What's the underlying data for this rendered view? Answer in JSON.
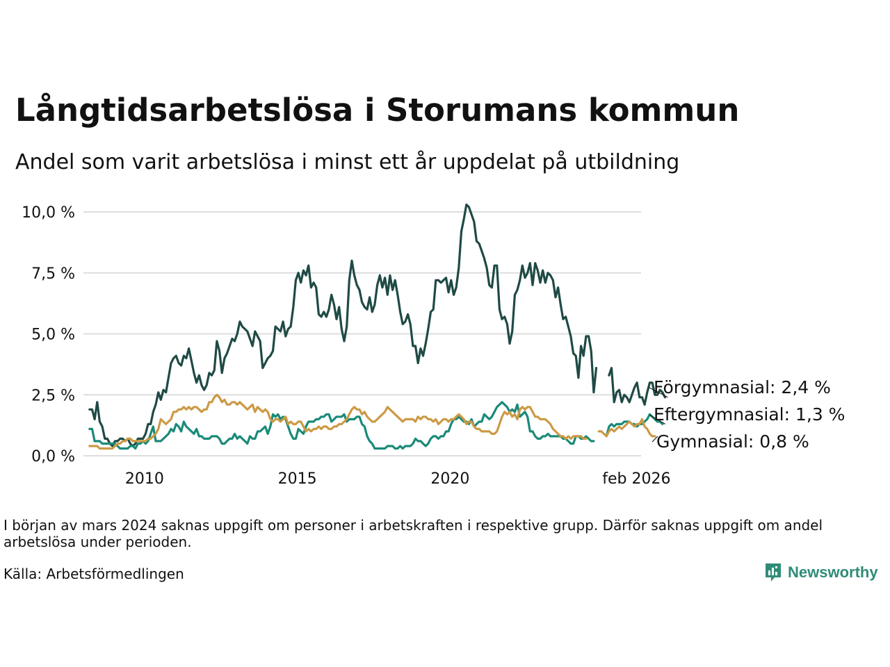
{
  "chart_data": {
    "type": "line",
    "title": "Långtidsarbetslösa i Storumans kommun",
    "subtitle": "Andel som varit arbetslösa i minst ett år uppdelat på utbildning",
    "xlabel": "",
    "ylabel": "",
    "x_start": 2008.2,
    "x_step": 0.0833333,
    "xlim": [
      2008.0,
      2026.25
    ],
    "ylim": [
      0,
      10.3
    ],
    "y_ticks": [
      {
        "value": 0,
        "label": "0,0 %"
      },
      {
        "value": 2.5,
        "label": "2,5 %"
      },
      {
        "value": 5,
        "label": "5,0 %"
      },
      {
        "value": 7.5,
        "label": "7,5 %"
      },
      {
        "value": 10,
        "label": "10,0 %"
      }
    ],
    "x_ticks": [
      {
        "value": 2010,
        "label": "2010"
      },
      {
        "value": 2015,
        "label": "2015"
      },
      {
        "value": 2020,
        "label": "2020"
      },
      {
        "value": 2026.1,
        "label": "feb 2026"
      }
    ],
    "grid": true,
    "series": [
      {
        "name": "Förgymnasial",
        "label": "Förgymnasial: 2,4 %",
        "color": "#1f4a45",
        "values": [
          1.9,
          1.9,
          1.5,
          2.2,
          1.4,
          1.2,
          0.7,
          0.7,
          0.5,
          0.4,
          0.6,
          0.6,
          0.7,
          0.7,
          0.6,
          0.7,
          0.5,
          0.4,
          0.5,
          0.7,
          0.7,
          0.7,
          0.9,
          1.3,
          1.3,
          1.8,
          2.1,
          2.6,
          2.3,
          2.7,
          2.6,
          3.2,
          3.8,
          4.0,
          4.1,
          3.8,
          3.7,
          4.1,
          4.0,
          4.4,
          3.9,
          3.4,
          3.0,
          3.3,
          2.9,
          2.7,
          2.9,
          3.4,
          3.3,
          3.5,
          4.7,
          4.3,
          3.4,
          4.0,
          4.2,
          4.5,
          4.8,
          4.7,
          5.0,
          5.5,
          5.3,
          5.2,
          5.1,
          4.8,
          4.5,
          5.1,
          4.9,
          4.7,
          3.6,
          3.8,
          4.0,
          4.1,
          4.3,
          5.3,
          5.2,
          5.1,
          5.5,
          4.9,
          5.2,
          5.3,
          6.1,
          7.2,
          7.5,
          7.1,
          7.6,
          7.4,
          7.8,
          6.9,
          7.1,
          6.9,
          5.8,
          5.7,
          5.9,
          5.7,
          6.0,
          6.6,
          6.2,
          5.6,
          6.1,
          5.2,
          4.7,
          5.3,
          7.2,
          8.0,
          7.4,
          7.0,
          6.8,
          6.3,
          6.1,
          6.0,
          6.5,
          5.9,
          6.2,
          7.0,
          7.4,
          6.9,
          7.3,
          6.6,
          7.4,
          6.8,
          7.2,
          6.6,
          5.9,
          5.4,
          5.5,
          5.8,
          5.4,
          4.5,
          4.5,
          3.8,
          4.4,
          4.1,
          4.6,
          5.2,
          5.9,
          6.0,
          7.2,
          7.2,
          7.1,
          7.2,
          7.3,
          6.7,
          7.2,
          6.6,
          6.9,
          7.7,
          9.2,
          9.7,
          10.3,
          10.2,
          9.9,
          9.6,
          8.8,
          8.7,
          8.4,
          8.1,
          7.7,
          7.0,
          6.9,
          7.8,
          7.8,
          6.0,
          5.6,
          5.7,
          5.4,
          4.6,
          5.1,
          6.6,
          6.8,
          7.2,
          7.8,
          7.3,
          7.5,
          7.9,
          7.0,
          7.9,
          7.6,
          7.1,
          7.6,
          7.1,
          7.5,
          7.4,
          7.2,
          6.5,
          6.9,
          6.2,
          5.6,
          5.7,
          5.3,
          4.9,
          4.2,
          4.1,
          3.2,
          4.5,
          4.1,
          4.9,
          4.9,
          4.3,
          2.6,
          3.6,
          null,
          null,
          null,
          null,
          3.3,
          3.6,
          2.2,
          2.6,
          2.7,
          2.2,
          2.5,
          2.4,
          2.2,
          2.5,
          2.8,
          3.0,
          2.4,
          2.4,
          2.1,
          2.6,
          3.0,
          3.0,
          2.5,
          2.5,
          2.7,
          2.6,
          2.4
        ],
        "end_value": 2.4
      },
      {
        "name": "Eftergymnasial",
        "label": "Eftergymnasial: 1,3 %",
        "color": "#1a8a78",
        "values": [
          1.1,
          1.1,
          0.6,
          0.6,
          0.6,
          0.5,
          0.5,
          0.5,
          0.5,
          0.5,
          0.5,
          0.4,
          0.3,
          0.3,
          0.3,
          0.3,
          0.4,
          0.4,
          0.3,
          0.5,
          0.5,
          0.6,
          0.5,
          0.6,
          0.9,
          1.2,
          0.6,
          0.6,
          0.6,
          0.7,
          0.8,
          0.9,
          1.1,
          1.0,
          1.3,
          1.2,
          1.0,
          1.4,
          1.2,
          1.1,
          1.0,
          0.9,
          1.1,
          0.8,
          0.8,
          0.7,
          0.7,
          0.7,
          0.8,
          0.8,
          0.8,
          0.7,
          0.5,
          0.5,
          0.6,
          0.7,
          0.7,
          0.9,
          0.7,
          0.8,
          0.7,
          0.6,
          0.5,
          0.8,
          0.7,
          0.7,
          1.0,
          1.0,
          1.1,
          1.2,
          0.9,
          1.2,
          1.7,
          1.6,
          1.7,
          1.5,
          1.6,
          1.5,
          1.2,
          0.9,
          0.7,
          0.7,
          1.1,
          1.0,
          0.9,
          1.2,
          1.4,
          1.4,
          1.4,
          1.5,
          1.5,
          1.6,
          1.6,
          1.7,
          1.7,
          1.4,
          1.5,
          1.6,
          1.6,
          1.6,
          1.7,
          1.4,
          1.5,
          1.5,
          1.5,
          1.6,
          1.6,
          1.3,
          1.2,
          0.8,
          0.6,
          0.5,
          0.3,
          0.3,
          0.3,
          0.3,
          0.3,
          0.4,
          0.4,
          0.4,
          0.3,
          0.3,
          0.4,
          0.3,
          0.4,
          0.4,
          0.4,
          0.5,
          0.7,
          0.6,
          0.6,
          0.5,
          0.4,
          0.5,
          0.7,
          0.8,
          0.8,
          0.7,
          0.8,
          0.8,
          1.0,
          1.0,
          1.3,
          1.5,
          1.5,
          1.6,
          1.5,
          1.4,
          1.4,
          1.3,
          1.5,
          1.2,
          1.3,
          1.4,
          1.4,
          1.7,
          1.6,
          1.5,
          1.6,
          1.8,
          2.0,
          2.1,
          2.2,
          2.1,
          2.0,
          1.8,
          1.9,
          1.8,
          2.1,
          1.6,
          1.7,
          1.8,
          1.6,
          1.0,
          1.0,
          0.8,
          0.7,
          0.7,
          0.8,
          0.8,
          0.9,
          0.8,
          0.8,
          0.8,
          0.8,
          0.8,
          0.7,
          0.7,
          0.6,
          0.5,
          0.5,
          0.8,
          0.8,
          0.7,
          0.7,
          0.8,
          0.7,
          0.6,
          0.6,
          null,
          null,
          null,
          null,
          0.8,
          1.2,
          1.3,
          1.2,
          1.3,
          1.3,
          1.3,
          1.4,
          1.4,
          1.4,
          1.3,
          1.3,
          1.2,
          1.3,
          1.3,
          1.4,
          1.5,
          1.7,
          1.6,
          1.5,
          1.4,
          1.4,
          1.3
        ],
        "end_value": 1.3
      },
      {
        "name": "Gymnasial",
        "label": "Gymnasial: 0,8 %",
        "color": "#cc9a45",
        "values": [
          0.4,
          0.4,
          0.4,
          0.4,
          0.3,
          0.3,
          0.3,
          0.3,
          0.3,
          0.3,
          0.4,
          0.5,
          0.5,
          0.6,
          0.6,
          0.7,
          0.7,
          0.6,
          0.6,
          0.6,
          0.6,
          0.6,
          0.6,
          0.7,
          0.7,
          0.8,
          0.9,
          1.1,
          1.5,
          1.4,
          1.3,
          1.4,
          1.5,
          1.8,
          1.8,
          1.9,
          1.9,
          2.0,
          1.9,
          2.0,
          1.9,
          2.0,
          2.0,
          1.9,
          1.8,
          1.9,
          1.9,
          2.2,
          2.2,
          2.4,
          2.5,
          2.4,
          2.2,
          2.3,
          2.1,
          2.1,
          2.2,
          2.2,
          2.1,
          2.2,
          2.1,
          2.0,
          1.9,
          2.0,
          2.1,
          1.8,
          2.0,
          1.9,
          1.8,
          1.9,
          1.8,
          1.5,
          1.4,
          1.5,
          1.5,
          1.4,
          1.5,
          1.6,
          1.3,
          1.4,
          1.3,
          1.3,
          1.4,
          1.4,
          1.2,
          1.0,
          1.1,
          1.0,
          1.1,
          1.1,
          1.2,
          1.1,
          1.2,
          1.2,
          1.1,
          1.1,
          1.2,
          1.2,
          1.3,
          1.3,
          1.4,
          1.5,
          1.7,
          1.9,
          2.0,
          1.9,
          1.9,
          1.7,
          1.8,
          1.6,
          1.5,
          1.4,
          1.4,
          1.5,
          1.6,
          1.7,
          1.8,
          2.0,
          1.9,
          1.8,
          1.7,
          1.6,
          1.5,
          1.4,
          1.5,
          1.5,
          1.5,
          1.5,
          1.4,
          1.6,
          1.5,
          1.6,
          1.6,
          1.5,
          1.5,
          1.4,
          1.5,
          1.3,
          1.4,
          1.5,
          1.5,
          1.4,
          1.5,
          1.5,
          1.6,
          1.7,
          1.6,
          1.5,
          1.3,
          1.4,
          1.4,
          1.2,
          1.1,
          1.1,
          1.0,
          1.0,
          1.0,
          1.0,
          0.9,
          0.9,
          1.0,
          1.3,
          1.6,
          1.8,
          1.7,
          1.8,
          1.6,
          1.7,
          1.5,
          1.9,
          2.0,
          1.9,
          2.0,
          2.0,
          1.8,
          1.6,
          1.6,
          1.5,
          1.5,
          1.5,
          1.4,
          1.3,
          1.1,
          1.0,
          0.9,
          0.8,
          0.8,
          0.7,
          0.8,
          0.7,
          0.8,
          0.8,
          0.8,
          0.8,
          0.7,
          0.7,
          null,
          null,
          null,
          null,
          1.0,
          1.0,
          0.9,
          0.8,
          1.0,
          1.1,
          1.0,
          1.1,
          1.2,
          1.1,
          1.2,
          1.3,
          1.4,
          1.3,
          1.2,
          1.3,
          1.3,
          1.5,
          1.2,
          1.1,
          0.9,
          0.8,
          0.8
        ],
        "end_value": 0.8
      }
    ]
  },
  "note": "I början av mars 2024 saknas uppgift om personer i arbetskraften i respektive grupp. Därför saknas uppgift om andel arbetslösa under perioden.",
  "source": "Källa: Arbetsförmedlingen",
  "logo": {
    "text": "Newsworthy",
    "icon": "bar-chart-speech-icon",
    "color": "#2f8c78"
  },
  "colors": {
    "grid": "#dddddd",
    "text": "#111111"
  }
}
